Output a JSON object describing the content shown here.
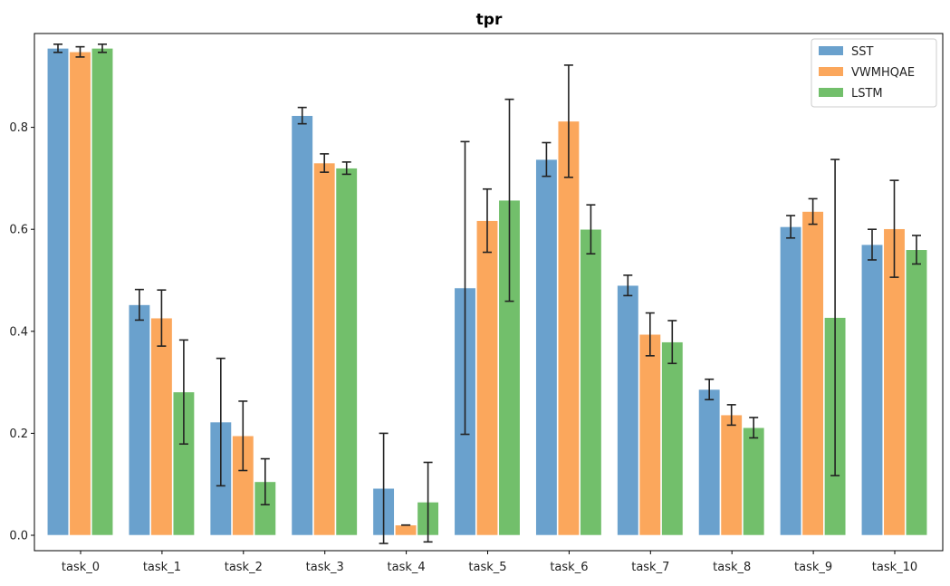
{
  "chart_data": {
    "type": "bar",
    "title": "tpr",
    "xlabel": "",
    "ylabel": "",
    "categories": [
      "task_0",
      "task_1",
      "task_2",
      "task_3",
      "task_4",
      "task_5",
      "task_6",
      "task_7",
      "task_8",
      "task_9",
      "task_10"
    ],
    "ylim": [
      -0.03,
      0.985
    ],
    "yticks": [
      "0.0",
      "0.2",
      "0.4",
      "0.6",
      "0.8"
    ],
    "grid": false,
    "legend_position": "top-right",
    "series": [
      {
        "name": "SST",
        "color": "#6aa1cd",
        "values": [
          0.955,
          0.452,
          0.222,
          0.823,
          0.092,
          0.485,
          0.737,
          0.49,
          0.286,
          0.605,
          0.57
        ],
        "errors": [
          0.008,
          0.03,
          0.125,
          0.016,
          0.108,
          0.287,
          0.033,
          0.02,
          0.02,
          0.022,
          0.03
        ]
      },
      {
        "name": "VWMHQAE",
        "color": "#fba75c",
        "values": [
          0.948,
          0.426,
          0.195,
          0.73,
          0.02,
          0.617,
          0.812,
          0.394,
          0.236,
          0.635,
          0.601
        ],
        "errors": [
          0.01,
          0.055,
          0.068,
          0.018,
          0.0,
          0.062,
          0.11,
          0.042,
          0.02,
          0.025,
          0.095
        ]
      },
      {
        "name": "LSTM",
        "color": "#72bf6b",
        "values": [
          0.955,
          0.281,
          0.105,
          0.72,
          0.065,
          0.657,
          0.6,
          0.379,
          0.211,
          0.427,
          0.56
        ],
        "errors": [
          0.008,
          0.102,
          0.045,
          0.012,
          0.078,
          0.198,
          0.048,
          0.042,
          0.02,
          0.31,
          0.028
        ]
      }
    ]
  }
}
